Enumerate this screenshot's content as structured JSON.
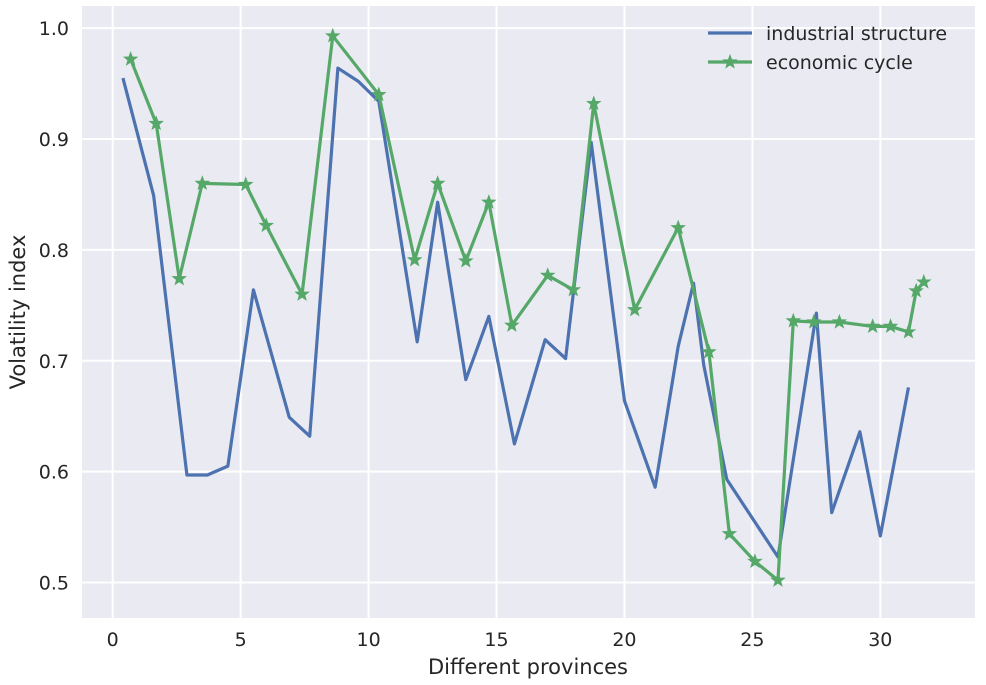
{
  "chart_data": {
    "type": "line",
    "title": "",
    "xlabel": "Different provinces",
    "ylabel": "Volatility index",
    "xlim": [
      -1.2,
      33.7
    ],
    "ylim": [
      0.468,
      1.02
    ],
    "xticks": [
      0,
      5,
      10,
      15,
      20,
      25,
      30
    ],
    "yticks": [
      0.5,
      0.6,
      0.7,
      0.8,
      0.9,
      1.0
    ],
    "ytick_labels": [
      "0.5",
      "0.6",
      "0.7",
      "0.8",
      "0.9",
      "1.0"
    ],
    "grid": true,
    "legend_position": "top-right",
    "series": [
      {
        "name": "industrial structure",
        "color": "#4c72b0",
        "marker": "none",
        "x": [
          0.4,
          1.6,
          2.9,
          3.7,
          4.5,
          5.5,
          6.9,
          7.7,
          8.8,
          9.6,
          10.4,
          11.9,
          12.7,
          13.8,
          14.7,
          15.7,
          16.9,
          17.7,
          18.7,
          20.0,
          21.2,
          22.1,
          22.7,
          23.1,
          24.0,
          26.0,
          27.5,
          28.1,
          29.2,
          30.0,
          31.1
        ],
        "y": [
          0.955,
          0.849,
          0.597,
          0.597,
          0.605,
          0.764,
          0.649,
          0.632,
          0.964,
          0.952,
          0.934,
          0.717,
          0.843,
          0.683,
          0.74,
          0.625,
          0.719,
          0.702,
          0.897,
          0.664,
          0.586,
          0.713,
          0.77,
          0.696,
          0.593,
          0.523,
          0.743,
          0.563,
          0.636,
          0.542,
          0.676
        ]
      },
      {
        "name": "economic cycle",
        "color": "#55a868",
        "marker": "star",
        "x": [
          0.7,
          1.7,
          2.6,
          3.5,
          5.2,
          6.0,
          7.4,
          8.6,
          10.4,
          11.8,
          12.7,
          13.8,
          14.7,
          15.6,
          17.0,
          18.0,
          18.8,
          20.4,
          22.1,
          23.3,
          24.1,
          25.1,
          26.0,
          26.6,
          27.4,
          28.4,
          29.7,
          30.4,
          31.1,
          31.4,
          31.7
        ],
        "y": [
          0.972,
          0.914,
          0.774,
          0.86,
          0.859,
          0.822,
          0.76,
          0.993,
          0.94,
          0.791,
          0.86,
          0.79,
          0.843,
          0.732,
          0.777,
          0.764,
          0.932,
          0.746,
          0.82,
          0.708,
          0.544,
          0.519,
          0.502,
          0.736,
          0.735,
          0.735,
          0.731,
          0.731,
          0.726,
          0.763,
          0.771
        ]
      }
    ]
  }
}
